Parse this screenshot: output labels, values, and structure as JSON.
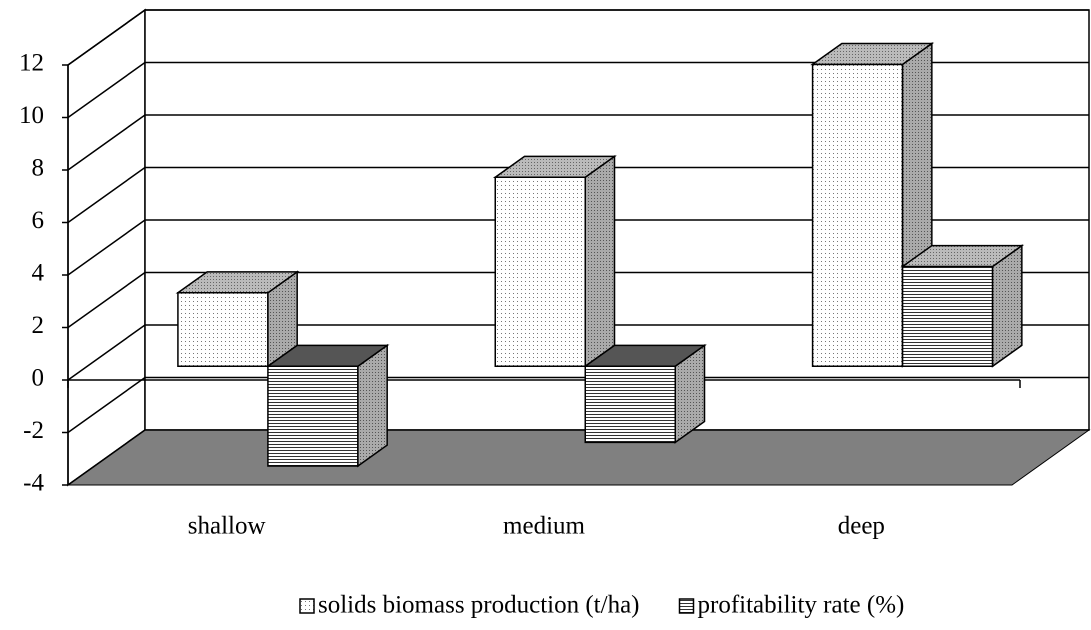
{
  "chart_data": {
    "type": "bar3d",
    "categories": [
      "shallow",
      "medium",
      "deep"
    ],
    "series": [
      {
        "name": "solids biomass production (t/ha)",
        "color": "#000000",
        "pattern": "dots",
        "values": [
          2.8,
          7.2,
          11.5
        ]
      },
      {
        "name": "profitability rate (%)",
        "color": "#000000",
        "pattern": "hlines",
        "values": [
          -3.8,
          -2.9,
          3.8
        ]
      }
    ],
    "ylim": [
      -4,
      12
    ],
    "yticks": [
      -4,
      -2,
      0,
      2,
      4,
      6,
      8,
      10,
      12
    ],
    "grid": true,
    "floor_color": "#808080"
  }
}
